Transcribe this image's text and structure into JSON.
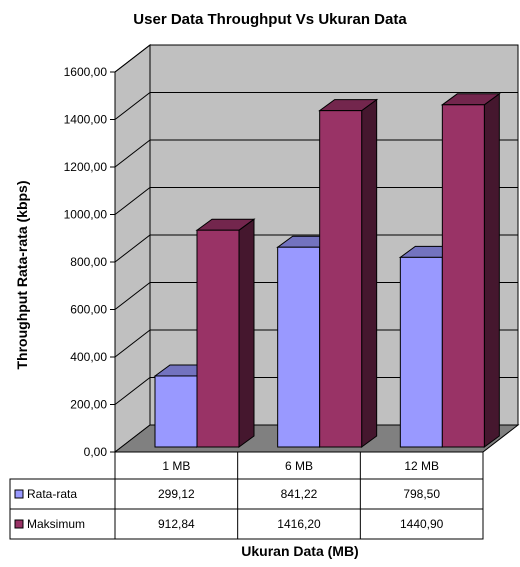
{
  "chart_data": {
    "type": "bar",
    "title": "User Data Throughput Vs Ukuran Data",
    "xlabel": "Ukuran Data (MB)",
    "ylabel": "Throughput Rata-rata (kbps)",
    "categories": [
      "1 MB",
      "6 MB",
      "12 MB"
    ],
    "series": [
      {
        "name": "Rata-rata",
        "values": [
          299.12,
          841.22,
          798.5
        ],
        "labels": [
          "299,12",
          "841,22",
          "798,50"
        ],
        "color": "#9999ff"
      },
      {
        "name": "Maksimum",
        "values": [
          912.84,
          1416.2,
          1440.9
        ],
        "labels": [
          "912,84",
          "1416,20",
          "1440,90"
        ],
        "color": "#993366"
      }
    ],
    "ylim": [
      0,
      1600
    ],
    "yticks": [
      0,
      200,
      400,
      600,
      800,
      1000,
      1200,
      1400,
      1600
    ],
    "ytick_labels": [
      "0,00",
      "200,00",
      "400,00",
      "600,00",
      "800,00",
      "1000,00",
      "1200,00",
      "1400,00",
      "1600,00"
    ],
    "grid": true,
    "three_d": true,
    "legend": "data-table",
    "wall_color": "#c0c0c0",
    "floor_color": "#808080"
  }
}
